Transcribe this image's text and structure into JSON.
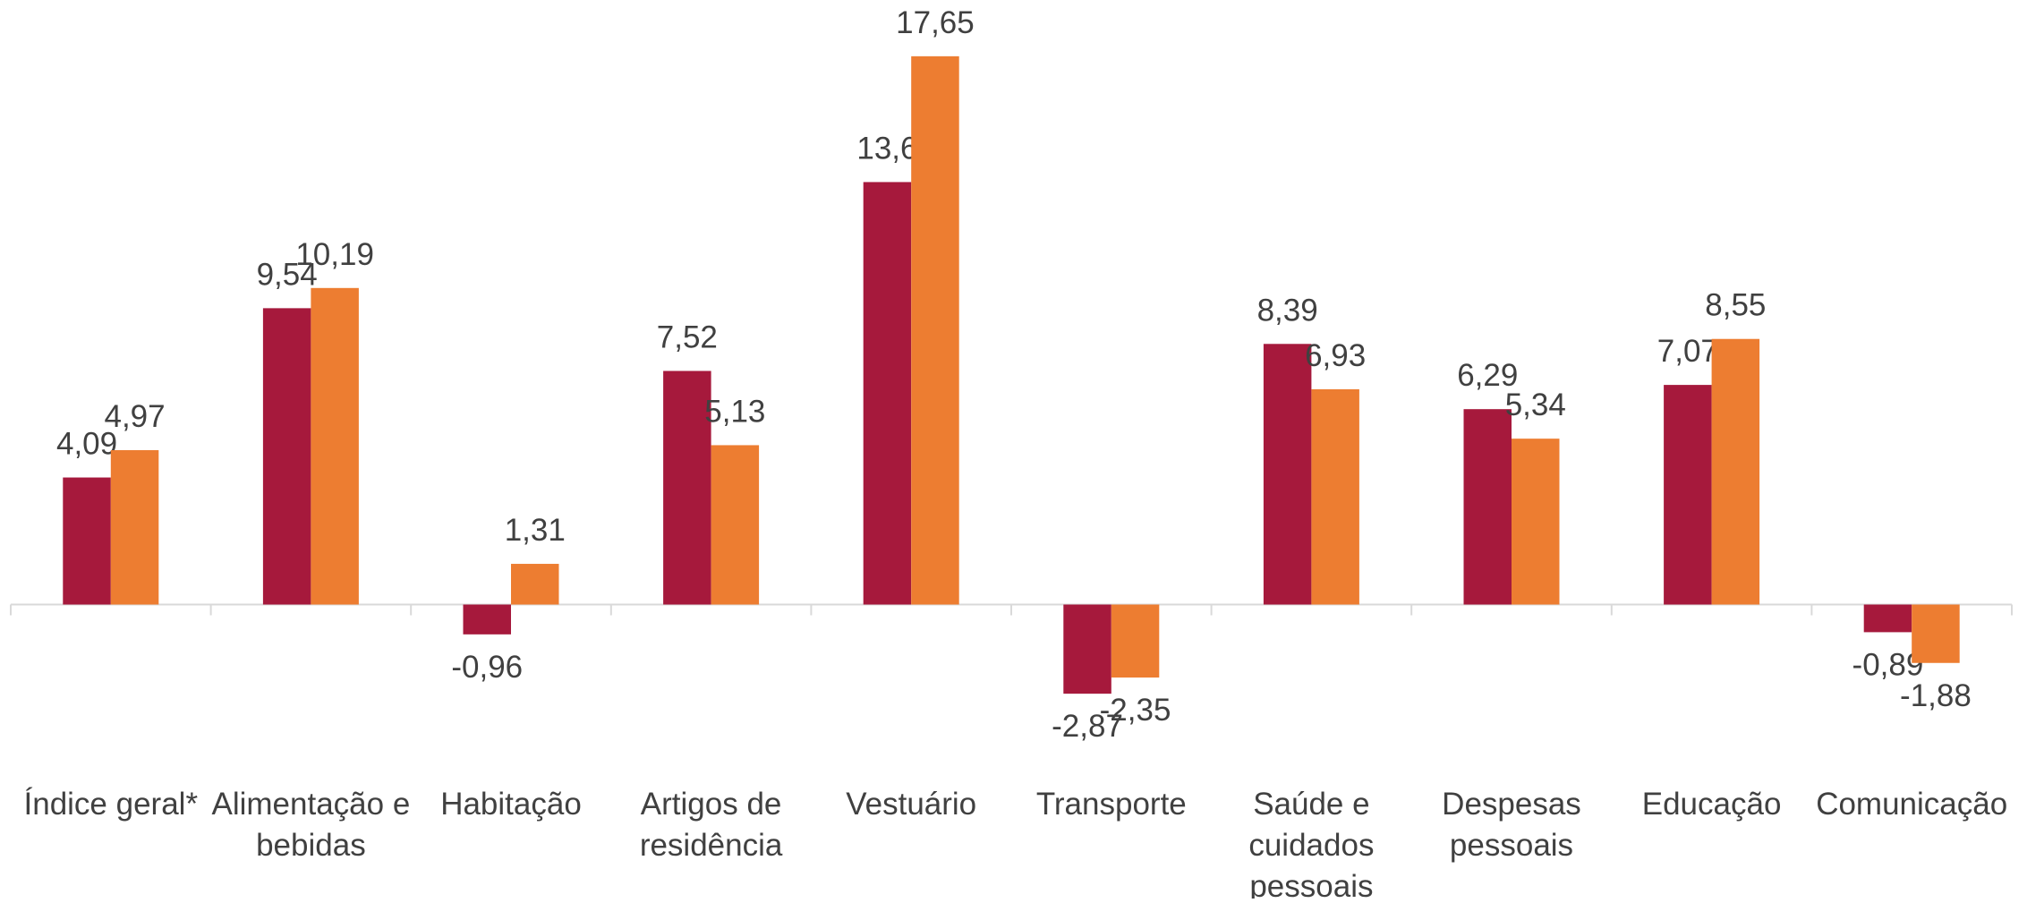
{
  "chart_data": {
    "type": "bar",
    "categories": [
      "Índice geral*",
      "Alimentação e\nbebidas",
      "Habitação",
      "Artigos de\nresidência",
      "Vestuário",
      "Transporte",
      "Saúde e\ncuidados\npessoais",
      "Despesas\npessoais",
      "Educação",
      "Comunicação"
    ],
    "series": [
      {
        "color": "#a6193c",
        "values": [
          4.09,
          9.54,
          -0.96,
          7.52,
          13.6,
          -2.87,
          8.39,
          6.29,
          7.07,
          -0.89
        ],
        "value_labels": [
          "4,09",
          "9,54",
          "-0,96",
          "7,52",
          "13,6",
          "-2,87",
          "8,39",
          "6,29",
          "7,07",
          "-0,89"
        ]
      },
      {
        "color": "#ed7d31",
        "values": [
          4.97,
          10.19,
          1.31,
          5.13,
          17.65,
          -2.35,
          6.93,
          5.34,
          8.55,
          -1.88
        ],
        "value_labels": [
          "4,97",
          "10,19",
          "1,31",
          "5,13",
          "17,65",
          "-2,35",
          "6,93",
          "5,34",
          "8,55",
          "-1,88"
        ]
      }
    ],
    "ylim": [
      -3.5,
      19
    ]
  }
}
